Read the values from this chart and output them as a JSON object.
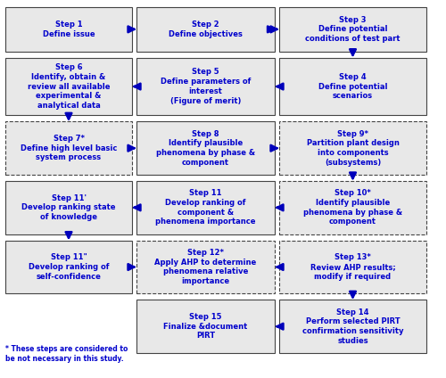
{
  "bg_color": "#ffffff",
  "box_fill": "#e8e8e8",
  "text_color": "#0000cc",
  "arrow_color": "#0000bb",
  "fig_width": 5.0,
  "fig_height": 4.24,
  "dpi": 100,
  "boxes": [
    {
      "id": "s1",
      "col": 0,
      "row": 0,
      "dashed": false,
      "text": "Step 1\nDefine issue"
    },
    {
      "id": "s2",
      "col": 1,
      "row": 0,
      "dashed": false,
      "text": "Step 2\nDefine objectives"
    },
    {
      "id": "s3",
      "col": 2,
      "row": 0,
      "dashed": false,
      "text": "Step 3\nDefine potential\nconditions of test part"
    },
    {
      "id": "s6",
      "col": 0,
      "row": 1,
      "dashed": false,
      "text": "Step 6\nIdentify, obtain &\nreview all available\nexperimental &\nanalytical data"
    },
    {
      "id": "s5",
      "col": 1,
      "row": 1,
      "dashed": false,
      "text": "Step 5\nDefine parameters of\ninterest\n(Figure of merit)"
    },
    {
      "id": "s4",
      "col": 2,
      "row": 1,
      "dashed": false,
      "text": "Step 4\nDefine potential\nscenarios"
    },
    {
      "id": "s7",
      "col": 0,
      "row": 2,
      "dashed": true,
      "text": "Step 7*\nDefine high level basic\nsystem process"
    },
    {
      "id": "s8",
      "col": 1,
      "row": 2,
      "dashed": false,
      "text": "Step 8\nIdentify plausible\nphenomena by phase &\ncomponent"
    },
    {
      "id": "s9",
      "col": 2,
      "row": 2,
      "dashed": true,
      "text": "Step 9*\nPartition plant design\ninto components\n(subsystems)"
    },
    {
      "id": "s11p",
      "col": 0,
      "row": 3,
      "dashed": false,
      "text": "Step 11'\nDevelop ranking state\nof knowledge"
    },
    {
      "id": "s11",
      "col": 1,
      "row": 3,
      "dashed": false,
      "text": "Step 11\nDevelop ranking of\ncomponent &\nphenomena importance"
    },
    {
      "id": "s10",
      "col": 2,
      "row": 3,
      "dashed": true,
      "text": "Step 10*\nIdentify plausible\nphenomena by phase &\ncomponent"
    },
    {
      "id": "s11q",
      "col": 0,
      "row": 4,
      "dashed": false,
      "text": "Step 11\"\nDevelop ranking of\nself-confidence"
    },
    {
      "id": "s12",
      "col": 1,
      "row": 4,
      "dashed": true,
      "text": "Step 12*\nApply AHP to determine\nphenomena relative\nimportance"
    },
    {
      "id": "s13",
      "col": 2,
      "row": 4,
      "dashed": true,
      "text": "Step 13*\nReview AHP results;\nmodify if required"
    },
    {
      "id": "s15",
      "col": 1,
      "row": 5,
      "dashed": false,
      "text": "Step 15\nFinalize &document\nPIRT"
    },
    {
      "id": "s14",
      "col": 2,
      "row": 5,
      "dashed": false,
      "text": "Step 14\nPerform selected PIRT\nconfirmation sensitivity\nstudies"
    }
  ],
  "note_text": "* These steps are considered to\nbe not necessary in this study.",
  "text_fontsize": 6.0,
  "note_fontsize": 5.5
}
